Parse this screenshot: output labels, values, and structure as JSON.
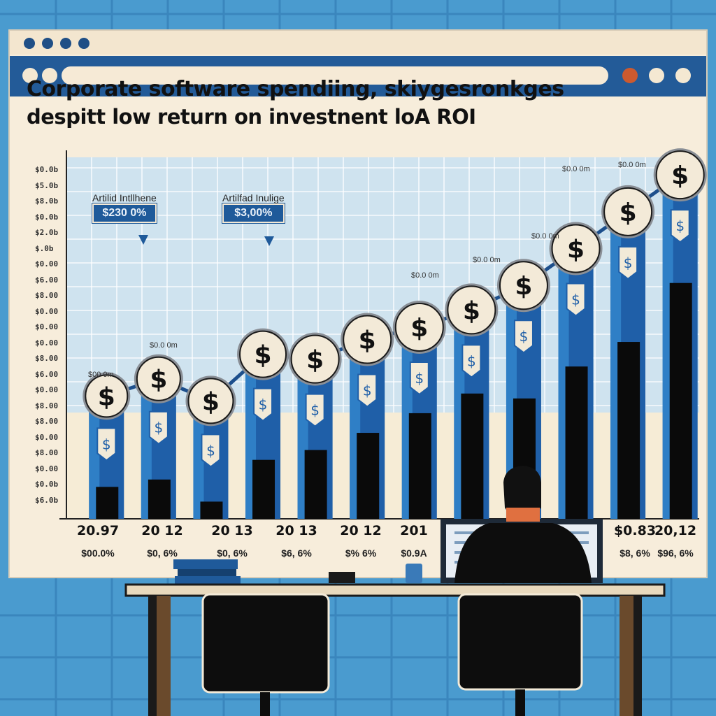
{
  "title": {
    "line1": "Corporate software spendiing, skiygesronkges",
    "line2": "despitt low return on investnent loA ROI"
  },
  "callouts": [
    {
      "label": "Artilid Intllhene",
      "value": "$230 0%"
    },
    {
      "label": "Artilfad Inulige",
      "value": "$3,00%"
    }
  ],
  "y_ticks": [
    "$0.0b",
    "$5.0b",
    "$8.0b",
    "$0.0b",
    "$2.0b",
    "$.0b",
    "$0.00",
    "$6.00",
    "$8.00",
    "$0.00",
    "$0.00",
    "$0.00",
    "$8.00",
    "$6.00",
    "$0.00",
    "$8.00",
    "$8.00",
    "$0.00",
    "$8.00",
    "$0.00",
    "$0.0b",
    "$6.0b"
  ],
  "x_years": [
    "20.97",
    "20 12",
    "20 13",
    "20 13",
    "20 12",
    "201",
    "$0.83",
    "20,12"
  ],
  "x_pcts": [
    "$00.0%",
    "$0, 6%",
    "$0, 6%",
    "$6, 6%",
    "$% 6%",
    "$0.9A",
    "$8, 6%",
    "$96, 6%"
  ],
  "bar_top_labels": [
    "$00 0m",
    "$0.0 0m",
    "$0.0 0m",
    "$0.0 0m",
    "$0.0 0m",
    "$0.0 0m",
    "$0.0 0m"
  ],
  "chart_data": {
    "type": "bar",
    "categories": [
      "20.97",
      "20 12",
      "20 13",
      "20 13",
      "20 12",
      "201",
      "",
      "",
      "",
      "",
      "$0.83",
      "20,12"
    ],
    "series": [
      {
        "values": [
          5.0,
          5.7,
          4.8,
          6.7,
          6.5,
          7.3,
          7.8,
          8.5,
          9.5,
          11.0,
          12.5,
          14.0
        ]
      },
      {
        "values": [
          1.3,
          1.6,
          0.7,
          2.4,
          2.8,
          3.5,
          4.3,
          5.1,
          4.9,
          6.2,
          7.2,
          9.6
        ]
      }
    ],
    "ylim": [
      0,
      15
    ]
  },
  "colors": {
    "bar": "#1f5fa8",
    "bar_light": "#2f7fc6",
    "inner_bar": "#0a0a0a",
    "line": "#1d4f8c",
    "coin": "#f3ead8"
  },
  "icons": [
    "dollar-coin-icon",
    "dollar-tag-icon",
    "person-at-desk-illustration"
  ]
}
